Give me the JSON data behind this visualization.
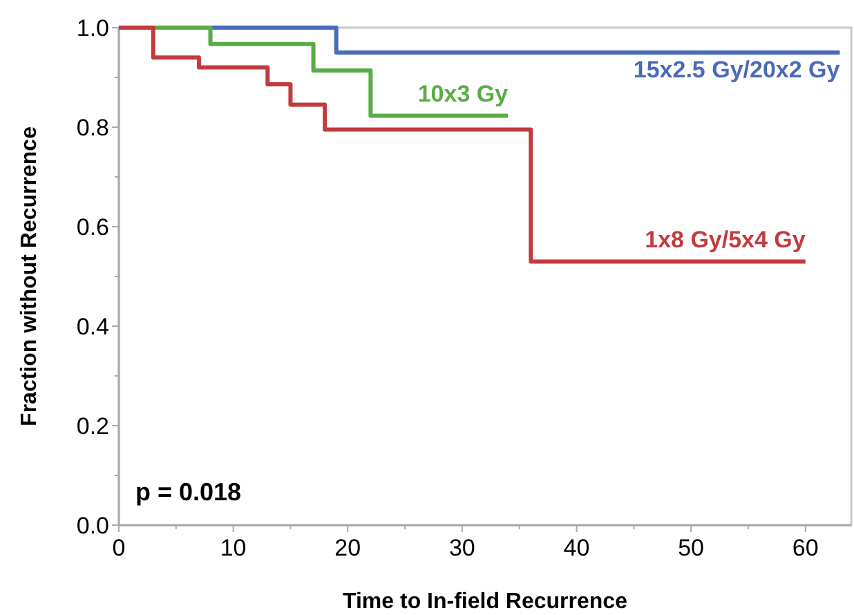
{
  "chart_data": {
    "type": "step",
    "xlabel": "Time to In-field Recurrence",
    "ylabel": "Fraction without Recurrence",
    "xlim": [
      0,
      64
    ],
    "ylim": [
      0,
      1
    ],
    "xticks": [
      0,
      {
        "value": 5,
        "label": null
      },
      10,
      {
        "value": 15,
        "label": null
      },
      20,
      {
        "value": 25,
        "label": null
      },
      30,
      {
        "value": 35,
        "label": null
      },
      40,
      {
        "value": 45,
        "label": null
      },
      50,
      {
        "value": 55,
        "label": null
      },
      60
    ],
    "yticks": [
      "0.0",
      {
        "value": 0.1,
        "label": null
      },
      {
        "value": 0.2,
        "label": "0.2"
      },
      {
        "value": 0.3,
        "label": null
      },
      {
        "value": 0.4,
        "label": "0.4"
      },
      {
        "value": 0.5,
        "label": null
      },
      {
        "value": 0.6,
        "label": "0.6"
      },
      {
        "value": 0.7,
        "label": null
      },
      {
        "value": 0.8,
        "label": "0.8"
      },
      {
        "value": 0.9,
        "label": null
      },
      {
        "value": 1,
        "label": "1.0"
      }
    ],
    "grid": false,
    "line_style": "solid",
    "annotations": [
      "p = 0.018"
    ],
    "series": [
      {
        "name": "15x2.5 Gy/20x2 Gy",
        "color": "#4a6bb8",
        "x": [
          0,
          19,
          63
        ],
        "values": [
          1,
          0.95,
          0.95
        ]
      },
      {
        "name": "10x3 Gy",
        "color": "#5aac45",
        "x": [
          0,
          8,
          17,
          22,
          34
        ],
        "values": [
          1,
          0.967,
          0.914,
          0.823,
          0.823
        ]
      },
      {
        "name": "1x8 Gy/5x4 Gy",
        "color": "#c23b3f",
        "x": [
          0,
          3,
          7,
          13,
          15,
          18,
          36,
          60
        ],
        "values": [
          1,
          0.94,
          0.92,
          0.886,
          0.845,
          0.795,
          0.53,
          0.53
        ]
      }
    ]
  }
}
